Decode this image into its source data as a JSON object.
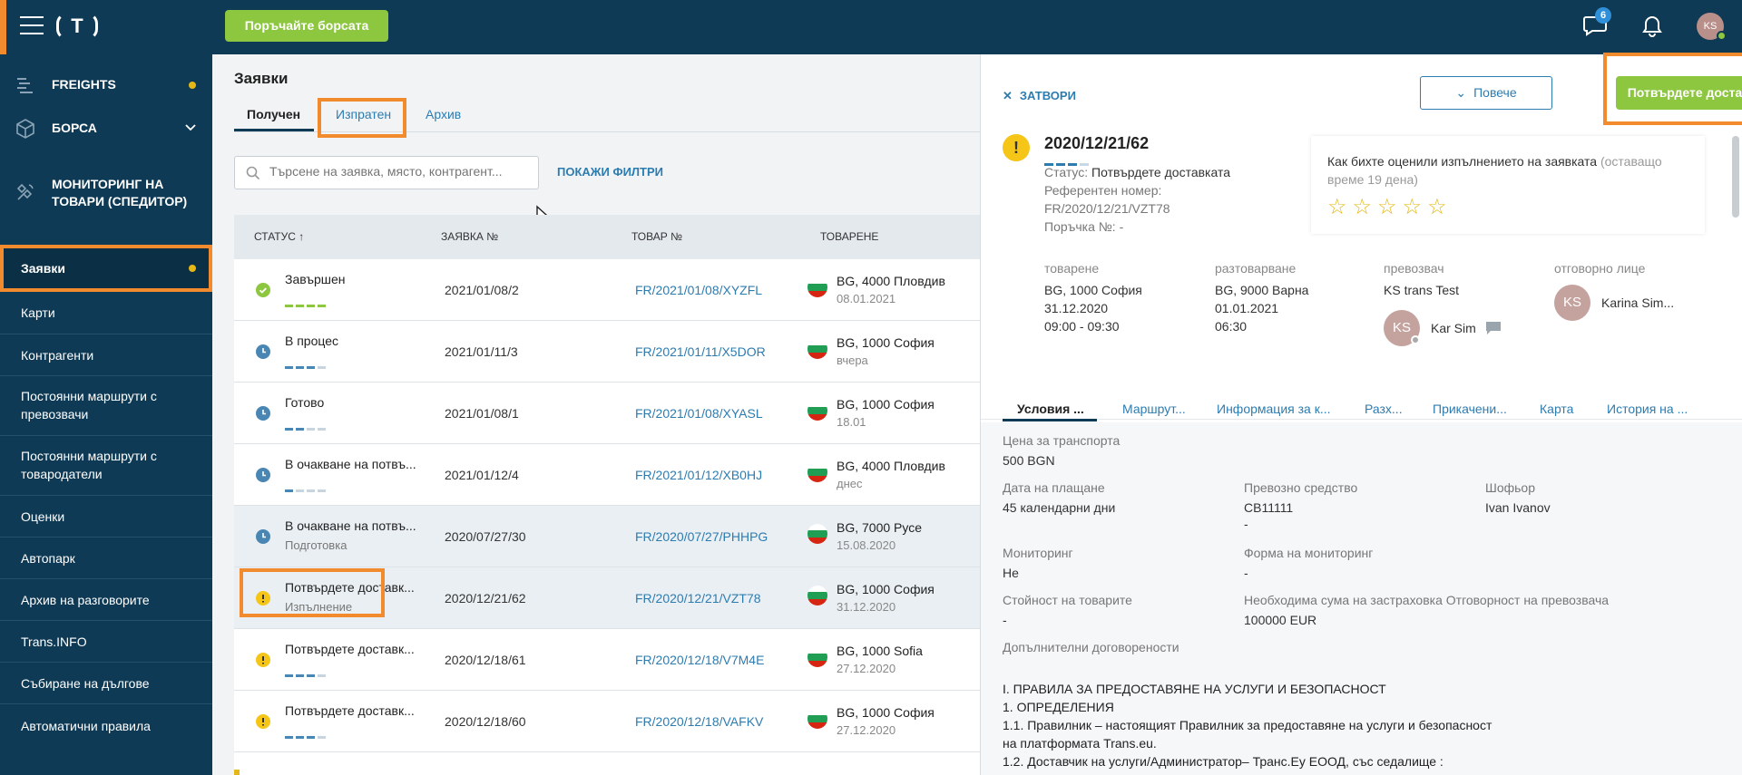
{
  "topbar": {
    "logo": "T",
    "cta_label": "Поръчайте борсата",
    "chat_badge": "6",
    "avatar": "KS"
  },
  "sidebar": {
    "top_items": [
      {
        "label": "FREIGHTS",
        "icon": "freights-icon"
      },
      {
        "label": "БОРСА",
        "icon": "box-icon"
      },
      {
        "label": "МОНИТОРИНГ НА ТОВАРИ (СПЕДИТОР)",
        "icon": "satellite-icon"
      }
    ],
    "items": [
      "Заявки",
      "Карти",
      "Контрагенти",
      "Постоянни маршрути с превозвачи",
      "Постоянни маршрути с товародатели",
      "Оценки",
      "Автопарк",
      "Архив на разговорите",
      "Trans.INFO",
      "Събиране на дългове",
      "Автоматични правила"
    ]
  },
  "main": {
    "title": "Заявки",
    "tabs": [
      "Получен",
      "Изпратен",
      "Архив"
    ],
    "search_placeholder": "Търсене на заявка, място, контрагент...",
    "filters_label": "ПОКАЖИ ФИЛТРИ",
    "columns": [
      "СТАТУС ↑",
      "ЗАЯВКА №",
      "ТОВАР №",
      "ТОВАРЕНЕ"
    ],
    "rows": [
      {
        "status": "Завършен",
        "sub": "",
        "order": "2021/01/08/2",
        "cargo": "FR/2021/01/08/XYZFL",
        "load": "BG, 4000 Пловдив",
        "date": "08.01.2021",
        "icon": "check"
      },
      {
        "status": "В процес",
        "sub": "",
        "order": "2021/01/11/3",
        "cargo": "FR/2021/01/11/X5DOR",
        "load": "BG, 1000 София",
        "date": "вчера",
        "icon": "clock"
      },
      {
        "status": "Готово",
        "sub": "",
        "order": "2021/01/08/1",
        "cargo": "FR/2021/01/08/XYASL",
        "load": "BG, 1000 София",
        "date": "18.01",
        "icon": "clock"
      },
      {
        "status": "В очакване на потвъ...",
        "sub": "",
        "order": "2021/01/12/4",
        "cargo": "FR/2021/01/12/XB0HJ",
        "load": "BG, 4000 Пловдив",
        "date": "днес",
        "icon": "clock"
      },
      {
        "status": "В очакване на потвъ...",
        "sub": "Подготовка",
        "order": "2020/07/27/30",
        "cargo": "FR/2020/07/27/PHHPG",
        "load": "BG, 7000 Русе",
        "date": "15.08.2020",
        "icon": "clock"
      },
      {
        "status": "Потвърдете доставк...",
        "sub": "Изпълнение",
        "order": "2020/12/21/62",
        "cargo": "FR/2020/12/21/VZT78",
        "load": "BG, 1000 София",
        "date": "31.12.2020",
        "icon": "warn"
      },
      {
        "status": "Потвърдете доставк...",
        "sub": "",
        "order": "2020/12/18/61",
        "cargo": "FR/2020/12/18/V7M4E",
        "load": "BG, 1000 Sofia",
        "date": "27.12.2020",
        "icon": "warn"
      },
      {
        "status": "Потвърдете доставк...",
        "sub": "",
        "order": "2020/12/18/60",
        "cargo": "FR/2020/12/18/VAFKV",
        "load": "BG, 1000 София",
        "date": "27.12.2020",
        "icon": "warn"
      }
    ]
  },
  "panel": {
    "close_label": "ЗАТВОРИ",
    "more_label": "Повече",
    "confirm_label": "Потвърдете доставката",
    "order_no": "2020/12/21/62",
    "status_label": "Статус:",
    "status_value": "Потвърдете доставката",
    "ref_label": "Референтен номер:",
    "ref_value": "FR/2020/12/21/VZT78",
    "po_label": "Поръчка №: -",
    "rating_q": "Как бихте оценили изпълнението на заявката",
    "rating_time": "(оставащо време 19 дена)",
    "loading": {
      "title": "товарене",
      "place": "BG, 1000 София",
      "date": "31.12.2020",
      "time": "09:00 - 09:30"
    },
    "unloading": {
      "title": "разтоварване",
      "place": "BG, 9000 Варна",
      "date": "01.01.2021",
      "time": "06:30"
    },
    "carrier": {
      "title": "превозвач",
      "name": "KS trans Test",
      "contact": "Kar Sim",
      "initials": "KS"
    },
    "responsible": {
      "title": "отговорно лице",
      "name": "Karina Sim...",
      "initials": "KS"
    },
    "tabs": [
      "Условия ...",
      "Маршрут...",
      "Информация за к...",
      "Разх...",
      "Прикачени...",
      "Карта",
      "История на ..."
    ],
    "details": {
      "price_label": "Цена за транспорта",
      "price": "500 BGN",
      "payment_label": "Дата на плащане",
      "payment": "45 календарни дни",
      "vehicle_label": "Превозно средство",
      "vehicle": "CB11111",
      "vehicle2": "-",
      "driver_label": "Шофьор",
      "driver": "Ivan Ivanov",
      "monitoring_label": "Мониторинг",
      "monitoring": "Не",
      "mform_label": "Форма на мониторинг",
      "mform": "-",
      "goods_label": "Стойност на товарите",
      "goods": "-",
      "insurance_label": "Необходима сума на застраховка Отговорност на превозвача",
      "insurance": "100000 EUR",
      "extra_label": "Допълнителни договорености",
      "terms": [
        "I. ПРАВИЛА ЗА ПРЕДОСТАВЯНЕ НА УСЛУГИ И БЕЗОПАСНОСТ",
        "1. ОПРЕДЕЛЕНИЯ",
        "1.1. Правилник – настоящият Правилник за предоставяне на услуги и безопасност",
        "на платформата Trans.eu.",
        "1.2. Доставчик на услуги/Администратор– Транс.Еу ЕООД, със седалище :"
      ]
    }
  },
  "colors": {
    "accent": "#f28a2e",
    "brand": "#0e3a55",
    "green": "#8dc63f",
    "link": "#2d7cb0",
    "warn": "#f5c518"
  }
}
